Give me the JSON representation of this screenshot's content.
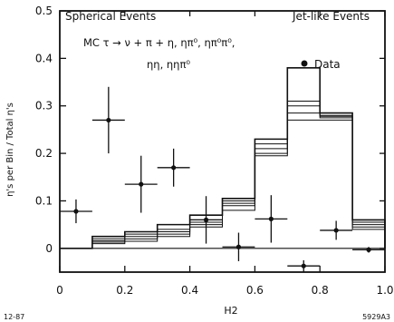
{
  "chart_data": {
    "type": "bar",
    "xlabel": "H2",
    "ylabel": "η's per Bin / Total η's",
    "xlim": [
      0,
      1.0
    ],
    "ylim": [
      -0.05,
      0.5
    ],
    "grid": false,
    "x_ticks": [
      0,
      0.2,
      0.4,
      0.6,
      0.8,
      1.0
    ],
    "x_tick_labels": [
      "0",
      "0.2",
      "0.4",
      "0.6",
      "0.8",
      "1.0"
    ],
    "y_ticks": [
      0,
      0.1,
      0.2,
      0.3,
      0.4,
      0.5
    ],
    "y_tick_labels": [
      "0",
      "0.1",
      "0.2",
      "0.3",
      "0.4",
      "0.5"
    ],
    "annotations": {
      "top_left": "Spherical Events",
      "top_right": "Jet-like Events",
      "mc_line1": "MC  τ → ν + π + η, ηπ⁰, ηπ⁰π⁰,",
      "mc_line2": "ηη, ηηπ⁰",
      "footer_left": "12-87",
      "footer_right": "5929A3"
    },
    "bin_edges": [
      0,
      0.1,
      0.2,
      0.3,
      0.4,
      0.5,
      0.6,
      0.7,
      0.8,
      0.9,
      1.0
    ],
    "series": [
      {
        "name": "MC",
        "kind": "histogram",
        "bands": [
          [
            0.0,
            0.01,
            0.015,
            0.025,
            0.045,
            0.08,
            0.195,
            0.27,
            0.27,
            0.04
          ],
          [
            0.0,
            0.013,
            0.02,
            0.03,
            0.05,
            0.09,
            0.2,
            0.285,
            0.275,
            0.045
          ],
          [
            0.0,
            0.016,
            0.025,
            0.035,
            0.055,
            0.095,
            0.21,
            0.3,
            0.278,
            0.05
          ],
          [
            0.0,
            0.02,
            0.03,
            0.04,
            0.06,
            0.1,
            0.22,
            0.31,
            0.28,
            0.055
          ],
          [
            0.0,
            0.025,
            0.035,
            0.05,
            0.07,
            0.105,
            0.23,
            0.38,
            0.285,
            0.06
          ]
        ]
      },
      {
        "name": "Data",
        "kind": "points",
        "x": [
          0.05,
          0.15,
          0.25,
          0.35,
          0.45,
          0.55,
          0.65,
          0.75,
          0.85,
          0.95
        ],
        "y": [
          0.078,
          0.27,
          0.135,
          0.17,
          0.06,
          0.003,
          0.062,
          -0.037,
          0.038,
          -0.003
        ],
        "yerr": [
          0.025,
          0.07,
          0.06,
          0.04,
          0.05,
          0.03,
          0.05,
          0.012,
          0.02,
          0.006
        ]
      }
    ]
  }
}
